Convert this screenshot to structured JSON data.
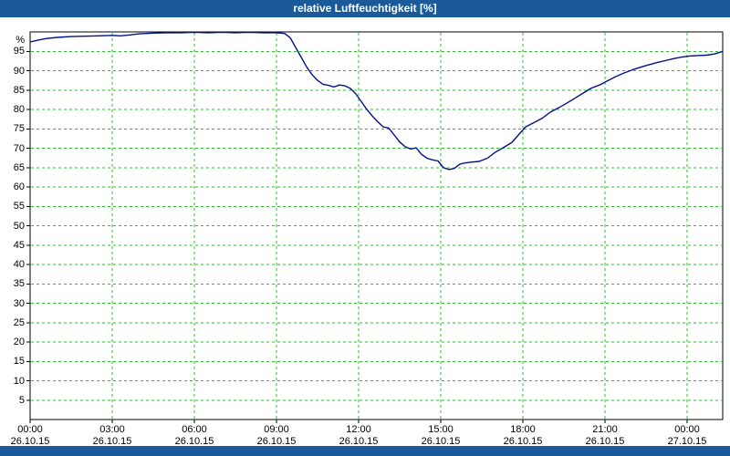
{
  "window": {
    "title": "relative Luftfeuchtigkeit [%]",
    "titlebar_color": "#1a5a9a",
    "bottombar_color": "#1a5a9a"
  },
  "chart_data": {
    "type": "line",
    "title": "relative Luftfeuchtigkeit [%]",
    "ylabel": "%",
    "xlabel": "",
    "ylim": [
      0,
      100
    ],
    "yticks": [
      5,
      10,
      15,
      20,
      25,
      30,
      35,
      40,
      45,
      50,
      55,
      60,
      65,
      70,
      75,
      80,
      85,
      90,
      95
    ],
    "x_hours_range": [
      0,
      25.3
    ],
    "xticks": [
      {
        "hour": 0,
        "time": "00:00",
        "date": "26.10.15"
      },
      {
        "hour": 3,
        "time": "03:00",
        "date": "26.10.15"
      },
      {
        "hour": 6,
        "time": "06:00",
        "date": "26.10.15"
      },
      {
        "hour": 9,
        "time": "09:00",
        "date": "26.10.15"
      },
      {
        "hour": 12,
        "time": "12:00",
        "date": "26.10.15"
      },
      {
        "hour": 15,
        "time": "15:00",
        "date": "26.10.15"
      },
      {
        "hour": 18,
        "time": "18:00",
        "date": "26.10.15"
      },
      {
        "hour": 21,
        "time": "21:00",
        "date": "26.10.15"
      },
      {
        "hour": 24,
        "time": "00:00",
        "date": "27.10.15"
      }
    ],
    "grid": true,
    "grid_color": "#3cb43c",
    "line_color": "#001289",
    "axis_color": "#000000",
    "legend_position": "none",
    "series": [
      {
        "name": "relative Luftfeuchtigkeit [%]",
        "points": [
          [
            0,
            97.4
          ],
          [
            0.3,
            97.9
          ],
          [
            0.6,
            98.3
          ],
          [
            1,
            98.6
          ],
          [
            1.5,
            98.8
          ],
          [
            2,
            98.9
          ],
          [
            2.5,
            99.0
          ],
          [
            3,
            99.1
          ],
          [
            3.3,
            99.0
          ],
          [
            3.6,
            99.2
          ],
          [
            4,
            99.5
          ],
          [
            4.5,
            99.7
          ],
          [
            5,
            99.8
          ],
          [
            5.5,
            99.8
          ],
          [
            6,
            99.9
          ],
          [
            6.5,
            99.8
          ],
          [
            7,
            99.9
          ],
          [
            7.5,
            99.8
          ],
          [
            8,
            99.9
          ],
          [
            8.5,
            99.8
          ],
          [
            9,
            99.8
          ],
          [
            9.3,
            99.6
          ],
          [
            9.5,
            98.5
          ],
          [
            9.7,
            96.0
          ],
          [
            9.9,
            93.5
          ],
          [
            10.1,
            91.0
          ],
          [
            10.3,
            89.0
          ],
          [
            10.5,
            87.5
          ],
          [
            10.7,
            86.5
          ],
          [
            10.9,
            86.2
          ],
          [
            11.1,
            85.8
          ],
          [
            11.3,
            86.3
          ],
          [
            11.5,
            86.1
          ],
          [
            11.7,
            85.4
          ],
          [
            11.9,
            84.0
          ],
          [
            12.1,
            82.0
          ],
          [
            12.3,
            80.0
          ],
          [
            12.5,
            78.3
          ],
          [
            12.7,
            76.8
          ],
          [
            12.9,
            75.5
          ],
          [
            13.1,
            75.2
          ],
          [
            13.3,
            73.4
          ],
          [
            13.5,
            71.6
          ],
          [
            13.7,
            70.4
          ],
          [
            13.9,
            69.8
          ],
          [
            14.1,
            70.1
          ],
          [
            14.3,
            68.4
          ],
          [
            14.5,
            67.4
          ],
          [
            14.7,
            67.0
          ],
          [
            14.9,
            66.7
          ],
          [
            15.1,
            65.0
          ],
          [
            15.3,
            64.5
          ],
          [
            15.5,
            64.8
          ],
          [
            15.7,
            65.9
          ],
          [
            15.9,
            66.2
          ],
          [
            16.1,
            66.4
          ],
          [
            16.4,
            66.6
          ],
          [
            16.7,
            67.4
          ],
          [
            17,
            69.0
          ],
          [
            17.3,
            70.2
          ],
          [
            17.6,
            71.5
          ],
          [
            17.9,
            73.9
          ],
          [
            18.1,
            75.5
          ],
          [
            18.4,
            76.6
          ],
          [
            18.7,
            77.7
          ],
          [
            19,
            79.3
          ],
          [
            19.3,
            80.4
          ],
          [
            19.6,
            81.6
          ],
          [
            19.9,
            82.9
          ],
          [
            20.2,
            84.2
          ],
          [
            20.5,
            85.5
          ],
          [
            20.8,
            86.3
          ],
          [
            21.1,
            87.4
          ],
          [
            21.4,
            88.5
          ],
          [
            21.7,
            89.4
          ],
          [
            22,
            90.2
          ],
          [
            22.3,
            90.9
          ],
          [
            22.6,
            91.5
          ],
          [
            22.9,
            92.1
          ],
          [
            23.2,
            92.6
          ],
          [
            23.5,
            93.1
          ],
          [
            23.8,
            93.5
          ],
          [
            24.1,
            93.8
          ],
          [
            24.4,
            93.9
          ],
          [
            24.7,
            94.0
          ],
          [
            25,
            94.3
          ],
          [
            25.3,
            95.0
          ]
        ]
      }
    ]
  }
}
